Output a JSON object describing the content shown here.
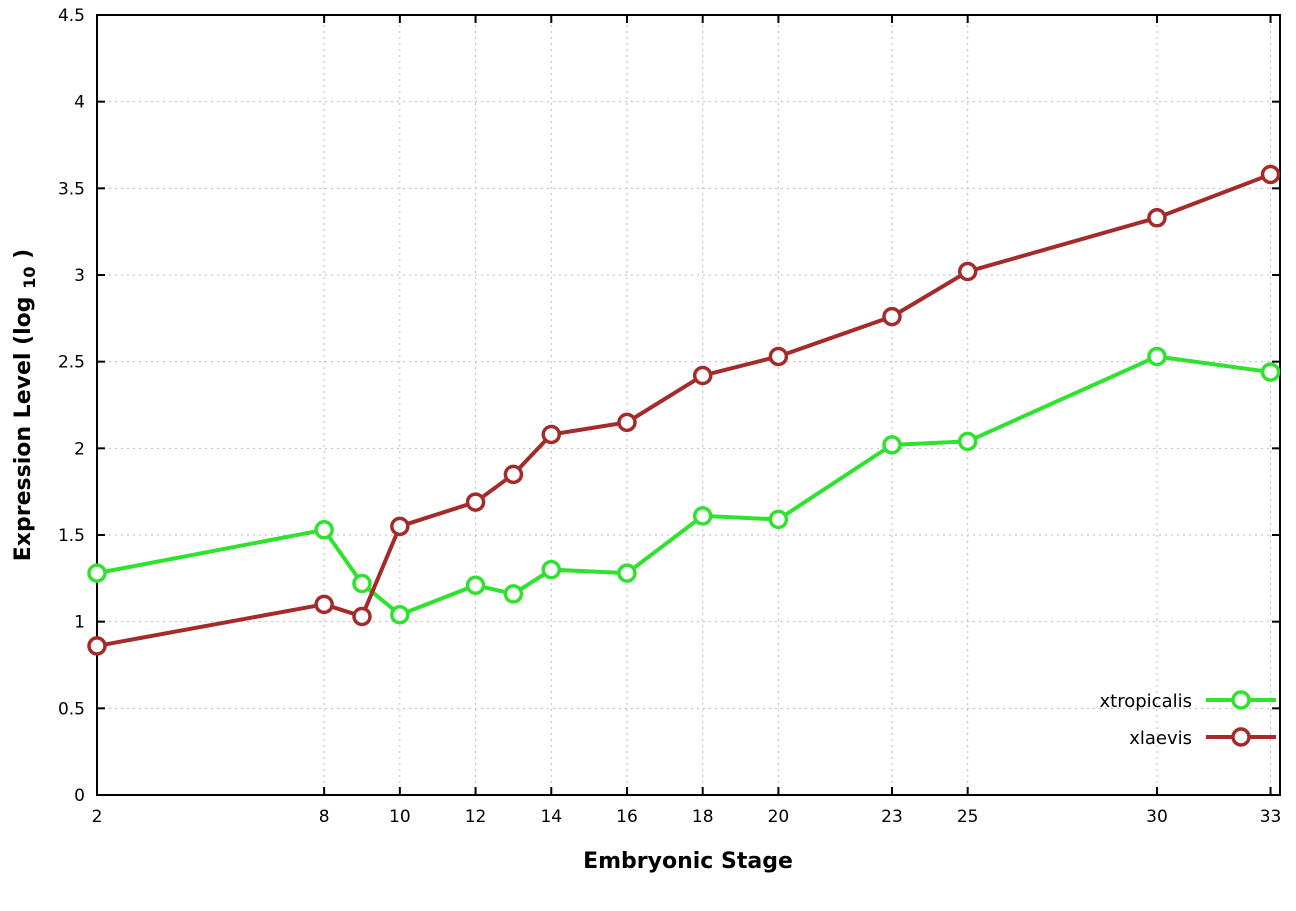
{
  "chart_data": {
    "type": "line",
    "title": "",
    "xlabel": "Embryonic Stage",
    "ylabel": {
      "prefix": "Expression Level (log",
      "sub": "10",
      "suffix": ")"
    },
    "x": [
      2,
      8,
      9,
      10,
      12,
      13,
      14,
      16,
      18,
      20,
      23,
      25,
      30,
      33
    ],
    "series": [
      {
        "name": "xtropicalis",
        "color": "#2ee22e",
        "values": [
          1.28,
          1.53,
          1.22,
          1.04,
          1.21,
          1.16,
          1.3,
          1.28,
          1.61,
          1.59,
          2.02,
          2.04,
          2.53,
          2.44
        ]
      },
      {
        "name": "xlaevis",
        "color": "#a52a2a",
        "values": [
          0.86,
          1.1,
          1.03,
          1.55,
          1.69,
          1.85,
          2.08,
          2.15,
          2.42,
          2.53,
          2.76,
          3.02,
          3.33,
          3.58
        ]
      }
    ],
    "xlim": [
      2,
      33.25
    ],
    "ylim": [
      0,
      4.5
    ],
    "xticks": [
      2,
      8,
      10,
      12,
      14,
      16,
      18,
      20,
      23,
      25,
      30,
      33
    ],
    "xtick_labels": [
      "2",
      "8",
      "10",
      "12",
      "14",
      "16",
      "18",
      "20",
      "23",
      "25",
      "30",
      "33"
    ],
    "yticks": [
      0,
      0.5,
      1,
      1.5,
      2,
      2.5,
      3,
      3.5,
      4,
      4.5
    ],
    "ytick_labels": [
      "0",
      "0.5",
      "1",
      "1.5",
      "2",
      "2.5",
      "3",
      "3.5",
      "4",
      "4.5"
    ],
    "grid": true,
    "legend_position": "inside-bottom-right",
    "marker": "open-circle"
  },
  "colors": {
    "background": "#ffffff",
    "axis": "#000000",
    "grid": "#bbbbbb",
    "text": "#000000"
  }
}
